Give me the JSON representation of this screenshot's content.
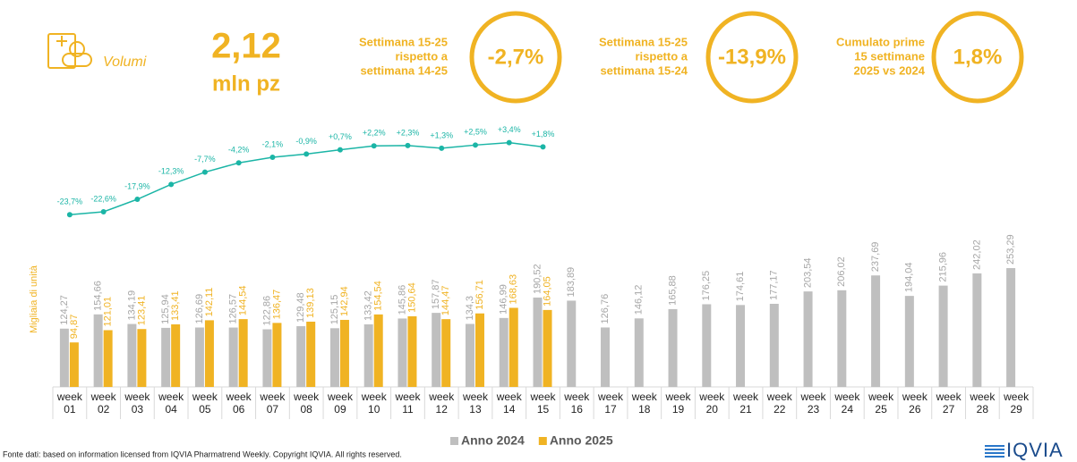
{
  "header": {
    "label": "Volumi",
    "value": "2,12",
    "unit": "mln pz",
    "kpis": [
      {
        "text": [
          "Settimana 15-25",
          "rispetto a",
          "settimana 14-25"
        ],
        "value": "-2,7%"
      },
      {
        "text": [
          "Settimana 15-25",
          "rispetto a",
          "settimana 15-24"
        ],
        "value": "-13,9%"
      },
      {
        "text": [
          "Cumulato prime",
          "15 settimane",
          "2025 vs 2024"
        ],
        "value": "1,8%"
      }
    ]
  },
  "chart_data": {
    "type": "bar",
    "y_label": "Migliaia di unità",
    "categories": [
      "week 01",
      "week 02",
      "week 03",
      "week 04",
      "week 05",
      "week 06",
      "week 07",
      "week 08",
      "week 09",
      "week 10",
      "week 11",
      "week 12",
      "week 13",
      "week 14",
      "week 15",
      "week 16",
      "week 17",
      "week 18",
      "week 19",
      "week 20",
      "week 21",
      "week 22",
      "week 23",
      "week 24",
      "week 25",
      "week 26",
      "week 27",
      "week 28",
      "week 29"
    ],
    "ylim": [
      0,
      600
    ],
    "y2lim": [
      -30,
      10
    ],
    "legend": "bottom",
    "series": [
      {
        "name": "Anno 2024",
        "color": "#bfbfbf",
        "values": [
          124.27,
          154.66,
          134.19,
          125.94,
          126.69,
          126.57,
          122.86,
          129.48,
          125.15,
          133.42,
          145.86,
          157.87,
          134.3,
          146.99,
          190.52,
          183.89,
          126.76,
          146.12,
          165.88,
          176.25,
          174.61,
          177.17,
          203.54,
          206.02,
          237.69,
          194.04,
          215.96,
          242.02,
          253.29
        ],
        "value_labels": [
          "124,27",
          "154,66",
          "134,19",
          "125,94",
          "126,69",
          "126,57",
          "122,86",
          "129,48",
          "125,15",
          "133,42",
          "145,86",
          "157,87",
          "134,3",
          "146,99",
          "190,52",
          "183,89",
          "126,76",
          "146,12",
          "165,88",
          "176,25",
          "174,61",
          "177,17",
          "203,54",
          "206,02",
          "237,69",
          "194,04",
          "215,96",
          "242,02",
          "253,29"
        ]
      },
      {
        "name": "Anno 2025",
        "color": "#f0b323",
        "values": [
          94.87,
          121.01,
          123.41,
          133.41,
          142.11,
          144.54,
          136.47,
          139.13,
          142.94,
          154.54,
          150.64,
          144.47,
          156.71,
          168.63,
          164.05,
          null,
          null,
          null,
          null,
          null,
          null,
          null,
          null,
          null,
          null,
          null,
          null,
          null,
          null
        ],
        "value_labels": [
          "94,87",
          "121,01",
          "123,41",
          "133,41",
          "142,11",
          "144,54",
          "136,47",
          "139,13",
          "142,94",
          "154,54",
          "150,64",
          "144,47",
          "156,71",
          "168,63",
          "164,05",
          null,
          null,
          null,
          null,
          null,
          null,
          null,
          null,
          null,
          null,
          null,
          null,
          null,
          null
        ]
      }
    ],
    "line": {
      "color": "#1bb5a6",
      "axis": "y2",
      "values": [
        -23.7,
        -22.6,
        -17.9,
        -12.3,
        -7.7,
        -4.2,
        -2.1,
        -0.9,
        0.7,
        2.2,
        2.3,
        1.3,
        2.5,
        3.4,
        1.8,
        null,
        null,
        null,
        null,
        null,
        null,
        null,
        null,
        null,
        null,
        null,
        null,
        null,
        null
      ],
      "value_labels": [
        "-23,7%",
        "-22,6%",
        "-17,9%",
        "-12,3%",
        "-7,7%",
        "-4,2%",
        "-2,1%",
        "-0,9%",
        "+0,7%",
        "+2,2%",
        "+2,3%",
        "+1,3%",
        "+2,5%",
        "+3,4%",
        "+1,8%",
        null,
        null,
        null,
        null,
        null,
        null,
        null,
        null,
        null,
        null,
        null,
        null,
        null,
        null
      ]
    }
  },
  "footer": {
    "source": "Fonte dati: based on information licensed from IQVIA Pharmatrend Weekly. Copyright IQVIA. All rights reserved.",
    "logo": "IQVIA"
  }
}
